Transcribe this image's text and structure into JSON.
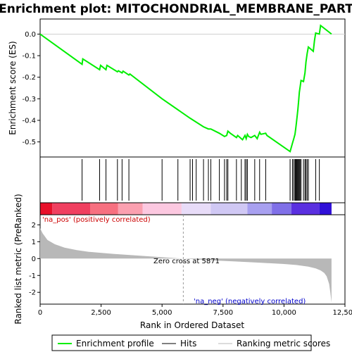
{
  "chart_data": {
    "type": "line",
    "title": "Enrichment plot: MITOCHONDRIAL_MEMBRANE_PART",
    "es_panel": {
      "ylabel": "Enrichment score (ES)",
      "ylim": [
        -0.57,
        0.07
      ],
      "yticks": [
        0.0,
        -0.1,
        -0.2,
        -0.3,
        -0.4,
        -0.5
      ],
      "ytick_labels": [
        "0.0",
        "-0.1",
        "-0.2",
        "-0.3",
        "-0.4",
        "-0.5"
      ],
      "color": "#00ee00",
      "x": [
        0,
        1720,
        1750,
        2440,
        2480,
        2700,
        2740,
        3170,
        3210,
        3360,
        3400,
        3640,
        3680,
        5000,
        6150,
        6700,
        6900,
        7000,
        7350,
        7560,
        7650,
        7700,
        7800,
        8050,
        8100,
        8250,
        8300,
        8400,
        8450,
        8500,
        8550,
        8650,
        8800,
        8900,
        9000,
        9050,
        9250,
        9300,
        10250,
        10300,
        10350,
        10400,
        10450,
        10480,
        10510,
        10540,
        10570,
        10600,
        10630,
        10660,
        10700,
        10800,
        10860,
        10900,
        10950,
        11000,
        11200,
        11250,
        11300,
        11450,
        11500,
        11950
      ],
      "y": [
        0.0,
        -0.14,
        -0.115,
        -0.165,
        -0.145,
        -0.165,
        -0.145,
        -0.175,
        -0.17,
        -0.18,
        -0.172,
        -0.19,
        -0.185,
        -0.3,
        -0.39,
        -0.43,
        -0.44,
        -0.44,
        -0.46,
        -0.475,
        -0.47,
        -0.45,
        -0.46,
        -0.48,
        -0.47,
        -0.485,
        -0.49,
        -0.47,
        -0.485,
        -0.465,
        -0.475,
        -0.48,
        -0.47,
        -0.485,
        -0.455,
        -0.465,
        -0.46,
        -0.47,
        -0.545,
        -0.525,
        -0.505,
        -0.485,
        -0.465,
        -0.44,
        -0.41,
        -0.38,
        -0.35,
        -0.31,
        -0.27,
        -0.245,
        -0.215,
        -0.22,
        -0.18,
        -0.13,
        -0.09,
        -0.06,
        -0.08,
        -0.03,
        0.005,
        0.0,
        0.04,
        0.0
      ]
    },
    "hits_panel": {
      "hit_positions": [
        1720,
        2440,
        2700,
        3170,
        3360,
        3640,
        5000,
        5650,
        6150,
        6250,
        6400,
        6700,
        6900,
        7000,
        7350,
        7560,
        7650,
        7700,
        8050,
        8250,
        8400,
        8450,
        8500,
        8800,
        9000,
        9250,
        10250,
        10350,
        10400,
        10450,
        10480,
        10510,
        10540,
        10570,
        10600,
        10630,
        10660,
        10700,
        10800,
        10860,
        10900,
        10950,
        11000,
        11300,
        11450
      ]
    },
    "heatmap_bar": {
      "segments": [
        {
          "start": 0,
          "end": 500,
          "color": "#e8102a"
        },
        {
          "start": 500,
          "end": 2050,
          "color": "#f04060"
        },
        {
          "start": 2050,
          "end": 3200,
          "color": "#f77080"
        },
        {
          "start": 3200,
          "end": 4200,
          "color": "#fba0b0"
        },
        {
          "start": 4200,
          "end": 5800,
          "color": "#fcc8e0"
        },
        {
          "start": 5800,
          "end": 7000,
          "color": "#e8dcf8"
        },
        {
          "start": 7000,
          "end": 8500,
          "color": "#d0c8f4"
        },
        {
          "start": 8500,
          "end": 9500,
          "color": "#a8a0f0"
        },
        {
          "start": 9500,
          "end": 10300,
          "color": "#8070e8"
        },
        {
          "start": 10300,
          "end": 11450,
          "color": "#5a30e0"
        },
        {
          "start": 11450,
          "end": 11950,
          "color": "#3010d8"
        }
      ]
    },
    "metric_panel": {
      "ylabel": "Ranked list metric (PreRanked)",
      "ylim": [
        -2.7,
        2.6
      ],
      "yticks": [
        2,
        1,
        0,
        -1,
        -2
      ],
      "ytick_labels": [
        "2",
        "1",
        "0",
        "-1",
        "-2"
      ],
      "fill_color": "#b8b8b8",
      "x": [
        0,
        100,
        300,
        600,
        1000,
        1500,
        2000,
        3000,
        4000,
        5000,
        5871,
        7000,
        8000,
        9000,
        10000,
        10500,
        11000,
        11300,
        11500,
        11650,
        11750,
        11850,
        11900,
        11950
      ],
      "y": [
        1.8,
        1.5,
        1.1,
        0.85,
        0.65,
        0.5,
        0.4,
        0.28,
        0.18,
        0.08,
        0.0,
        -0.1,
        -0.17,
        -0.24,
        -0.32,
        -0.38,
        -0.48,
        -0.58,
        -0.7,
        -0.85,
        -1.05,
        -1.5,
        -2.0,
        -2.6
      ],
      "zero_cross_label": "Zero cross at 5871",
      "zero_cross_x": 5871,
      "pos_label": "'na_pos' (positively correlated)",
      "neg_label": "'na_neg' (negatively correlated)"
    },
    "xaxis": {
      "xlabel": "Rank in Ordered Dataset",
      "xlim": [
        0,
        12500
      ],
      "xticks": [
        0,
        2500,
        5000,
        7500,
        10000,
        12500
      ],
      "xtick_labels": [
        "0",
        "2,500",
        "5,000",
        "7,500",
        "10,000",
        "12,500"
      ],
      "n_genes": 11950
    },
    "legend": {
      "placement": "bottom",
      "entries": [
        {
          "label": "Enrichment profile",
          "color": "#00ee00"
        },
        {
          "label": "Hits",
          "color": "#000000"
        },
        {
          "label": "Ranking metric scores",
          "color": "#b8b8b8"
        }
      ]
    }
  }
}
